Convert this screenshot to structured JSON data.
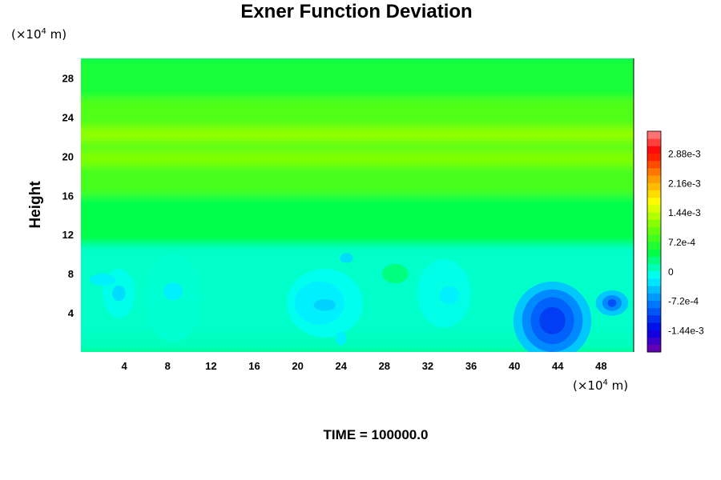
{
  "chart_data": {
    "type": "heatmap",
    "title": "Exner Function Deviation",
    "xlabel": "",
    "ylabel": "Height",
    "x_unit": {
      "prefix": "(×10",
      "exp": "4",
      "suffix": " m)"
    },
    "y_unit": {
      "prefix": "(×10",
      "exp": "4",
      "suffix": " m)"
    },
    "xlim": [
      0,
      51
    ],
    "ylim": [
      0,
      30
    ],
    "x_ticks": [
      4,
      8,
      12,
      16,
      20,
      24,
      28,
      32,
      36,
      40,
      44,
      48
    ],
    "x_tick_labels": [
      "4",
      "8",
      "12",
      "16",
      "20",
      "24",
      "28",
      "32",
      "36",
      "40",
      "44",
      "48"
    ],
    "y_ticks": [
      4,
      8,
      12,
      16,
      20,
      24,
      28
    ],
    "y_tick_labels": [
      "4",
      "8",
      "12",
      "16",
      "20",
      "24",
      "28"
    ],
    "background_level": 0.00035,
    "horizontal_bands": [
      {
        "y": [
          0,
          2
        ],
        "value": 8e-05
      },
      {
        "y": [
          2,
          11
        ],
        "value": 5e-05
      },
      {
        "y": [
          11,
          16
        ],
        "value": 0.00045
      },
      {
        "y": [
          16,
          19
        ],
        "value": 0.00085
      },
      {
        "y": [
          19,
          20.5
        ],
        "value": 0.00115
      },
      {
        "y": [
          20.5,
          21.5
        ],
        "value": 0.00095
      },
      {
        "y": [
          21.5,
          23
        ],
        "value": 0.00122
      },
      {
        "y": [
          23,
          26
        ],
        "value": 0.0009
      },
      {
        "y": [
          26,
          30
        ],
        "value": 0.0006
      }
    ],
    "features": [
      {
        "x": 3.5,
        "y": 6,
        "rx": 1.5,
        "ry": 2.5,
        "value": -6e-05
      },
      {
        "x": 2,
        "y": 7.4,
        "rx": 1.2,
        "ry": 0.6,
        "value": -0.0002
      },
      {
        "x": 3.5,
        "y": 6,
        "rx": 0.6,
        "ry": 0.8,
        "value": -0.0003
      },
      {
        "x": 8.5,
        "y": 5.5,
        "rx": 2.5,
        "ry": 4.5,
        "value": 2e-05
      },
      {
        "x": 8.5,
        "y": 6.2,
        "rx": 0.9,
        "ry": 0.9,
        "value": -0.0002
      },
      {
        "x": 22.5,
        "y": 5,
        "rx": 3.5,
        "ry": 3.5,
        "value": -8e-05
      },
      {
        "x": 22,
        "y": 5,
        "rx": 2.3,
        "ry": 2.2,
        "value": -0.0002
      },
      {
        "x": 22.5,
        "y": 4.8,
        "rx": 1,
        "ry": 0.6,
        "value": -0.00035
      },
      {
        "x": 24,
        "y": 1.4,
        "rx": 0.5,
        "ry": 0.7,
        "value": -0.0002
      },
      {
        "x": 24.5,
        "y": 9.6,
        "rx": 0.6,
        "ry": 0.5,
        "value": -0.0003
      },
      {
        "x": 29,
        "y": 8,
        "rx": 1.2,
        "ry": 1,
        "value": 0.0003
      },
      {
        "x": 33.5,
        "y": 6,
        "rx": 2.5,
        "ry": 3.5,
        "value": -5e-05
      },
      {
        "x": 34,
        "y": 5.8,
        "rx": 0.9,
        "ry": 0.9,
        "value": -0.0002
      },
      {
        "x": 43.5,
        "y": 3.2,
        "rx": 3.6,
        "ry": 4,
        "value": -0.0004
      },
      {
        "x": 43.5,
        "y": 3.2,
        "rx": 2.8,
        "ry": 3.2,
        "value": -0.0007
      },
      {
        "x": 43.5,
        "y": 3.2,
        "rx": 2,
        "ry": 2.4,
        "value": -0.0009
      },
      {
        "x": 43.5,
        "y": 3.2,
        "rx": 1.2,
        "ry": 1.4,
        "value": -0.0011
      },
      {
        "x": 49,
        "y": 5,
        "rx": 1.5,
        "ry": 1.3,
        "value": -0.0004
      },
      {
        "x": 49,
        "y": 5,
        "rx": 0.9,
        "ry": 0.8,
        "value": -0.0007
      },
      {
        "x": 49,
        "y": 5,
        "rx": 0.4,
        "ry": 0.4,
        "value": -0.001
      }
    ],
    "colorbar": {
      "min": -0.00196,
      "max": 0.00344,
      "step": 0.00018,
      "tick_values": [
        0.00288,
        0.00216,
        0.00144,
        0.00072,
        0,
        -0.00072,
        -0.00144
      ],
      "tick_labels": [
        "2.88e-3",
        "2.16e-3",
        "1.44e-3",
        "7.2e-4",
        "0",
        "-7.2e-4",
        "-1.44e-3"
      ]
    },
    "annotation": "TIME = 100000.0"
  }
}
